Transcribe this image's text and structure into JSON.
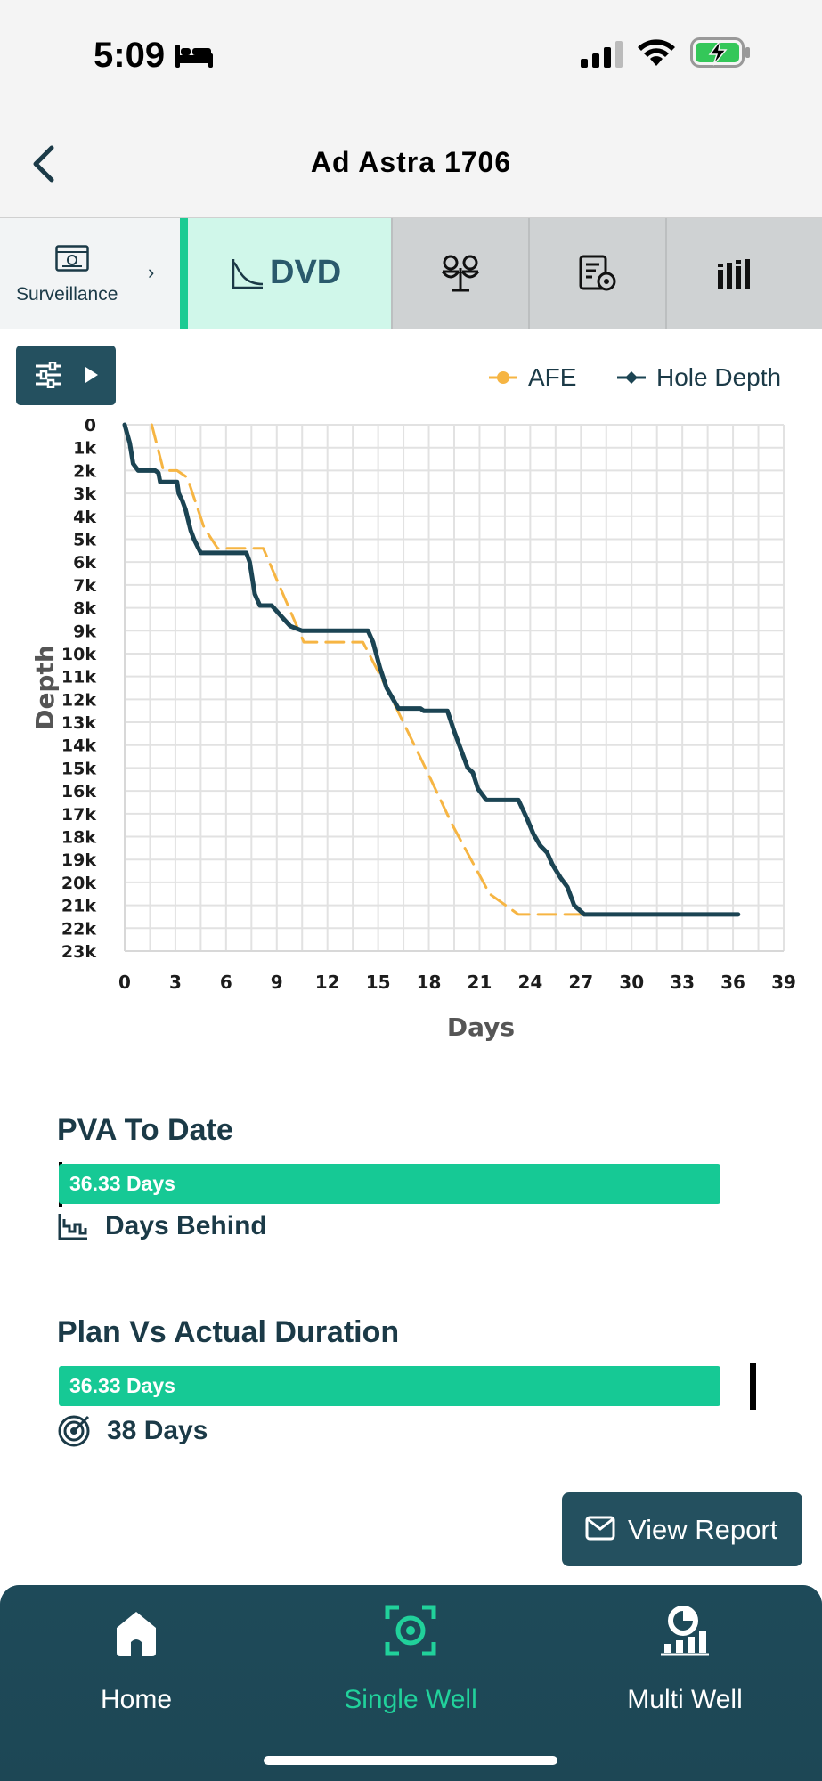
{
  "status_bar": {
    "time": "5:09"
  },
  "header": {
    "title": "Ad Astra 1706"
  },
  "tabs": {
    "surveillance_label": "Surveillance",
    "dvd_label": "DVD"
  },
  "legend": {
    "afe": "AFE",
    "hole_depth": "Hole Depth"
  },
  "colors": {
    "afe": "#f6b543",
    "hole_depth": "#1b4453",
    "accent": "#1ccb93",
    "nav_bg": "#1f4b59"
  },
  "chart_data": {
    "type": "line",
    "title": "",
    "xlabel": "Days",
    "ylabel": "Depth",
    "xlim": [
      0,
      39
    ],
    "ylim": [
      0,
      23000
    ],
    "y_inverted": true,
    "x_ticks": [
      "0",
      "3",
      "6",
      "9",
      "12",
      "15",
      "18",
      "21",
      "24",
      "27",
      "30",
      "33",
      "36",
      "39"
    ],
    "y_ticks": [
      "0",
      "1k",
      "2k",
      "3k",
      "4k",
      "5k",
      "6k",
      "7k",
      "8k",
      "9k",
      "10k",
      "11k",
      "12k",
      "13k",
      "14k",
      "15k",
      "16k",
      "17k",
      "18k",
      "19k",
      "20k",
      "21k",
      "22k",
      "23k"
    ],
    "series": [
      {
        "name": "AFE",
        "style": "dashed",
        "points": [
          [
            1.6,
            0
          ],
          [
            2.3,
            2000
          ],
          [
            3.1,
            2000
          ],
          [
            3.7,
            2300
          ],
          [
            4.7,
            4500
          ],
          [
            5.5,
            5400
          ],
          [
            8.2,
            5400
          ],
          [
            10.6,
            9500
          ],
          [
            14.1,
            9500
          ],
          [
            15.5,
            11500
          ],
          [
            17.8,
            15000
          ],
          [
            19.4,
            17500
          ],
          [
            21.6,
            20500
          ],
          [
            23.3,
            21400
          ],
          [
            27.0,
            21400
          ]
        ]
      },
      {
        "name": "Hole Depth",
        "style": "solid",
        "points": [
          [
            0.0,
            0
          ],
          [
            0.3,
            800
          ],
          [
            0.5,
            1700
          ],
          [
            0.8,
            2000
          ],
          [
            1.8,
            2000
          ],
          [
            2.0,
            2100
          ],
          [
            2.1,
            2500
          ],
          [
            3.1,
            2500
          ],
          [
            3.2,
            3000
          ],
          [
            3.4,
            3300
          ],
          [
            3.6,
            3700
          ],
          [
            3.8,
            4300
          ],
          [
            3.9,
            4600
          ],
          [
            4.1,
            5000
          ],
          [
            4.5,
            5600
          ],
          [
            7.2,
            5600
          ],
          [
            7.4,
            6000
          ],
          [
            7.7,
            7400
          ],
          [
            8.0,
            7900
          ],
          [
            8.7,
            7900
          ],
          [
            9.3,
            8400
          ],
          [
            9.8,
            8800
          ],
          [
            10.5,
            9000
          ],
          [
            14.4,
            9000
          ],
          [
            14.7,
            9500
          ],
          [
            15.1,
            10600
          ],
          [
            15.5,
            11500
          ],
          [
            16.2,
            12400
          ],
          [
            17.5,
            12400
          ],
          [
            17.7,
            12500
          ],
          [
            19.1,
            12500
          ],
          [
            19.5,
            13400
          ],
          [
            20.3,
            15000
          ],
          [
            20.6,
            15200
          ],
          [
            20.9,
            15900
          ],
          [
            21.4,
            16400
          ],
          [
            23.3,
            16400
          ],
          [
            23.8,
            17200
          ],
          [
            24.2,
            17900
          ],
          [
            24.6,
            18400
          ],
          [
            25.0,
            18700
          ],
          [
            25.3,
            19200
          ],
          [
            25.8,
            19800
          ],
          [
            26.2,
            20200
          ],
          [
            26.6,
            21000
          ],
          [
            27.2,
            21400
          ],
          [
            36.3,
            21400
          ]
        ]
      }
    ]
  },
  "pva": {
    "title": "PVA To Date",
    "bar_value": "36.33 Days",
    "days_value": 36.33,
    "status_label": "Days Behind"
  },
  "plan_vs_actual": {
    "title": "Plan Vs Actual Duration",
    "bar_value": "36.33 Days",
    "actual_days": 36.33,
    "target_label": "38 Days",
    "target_days": 38
  },
  "actions": {
    "view_report": "View Report"
  },
  "bottom_nav": {
    "home": "Home",
    "single_well": "Single Well",
    "multi_well": "Multi Well"
  }
}
